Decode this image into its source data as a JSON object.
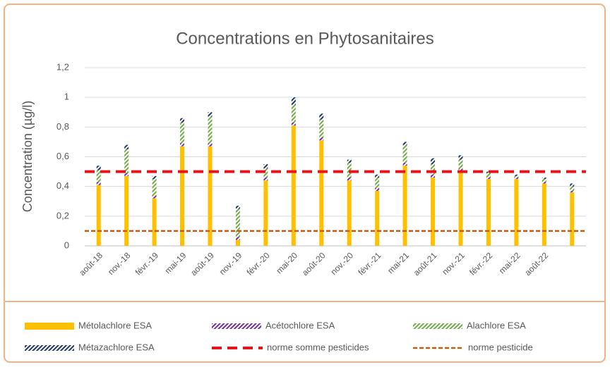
{
  "chart_data": {
    "type": "stacked_bar",
    "title": "Concentrations en Phytosanitaires",
    "y_axis_label": "Concentration (µg/l)",
    "categories": [
      "août-18",
      "nov.-18",
      "févr.-19",
      "mai-19",
      "août-19",
      "nov.-19",
      "févr.-20",
      "mai-20",
      "août-20",
      "nov.-20",
      "févr.-21",
      "mai-21",
      "août-21",
      "nov.-21",
      "févr.-22",
      "mai-22",
      "août-22",
      null
    ],
    "series": [
      {
        "name": "Métolachlore ESA",
        "color": "#ffc000",
        "hatch": false,
        "values": [
          0.41,
          0.47,
          0.32,
          0.67,
          0.67,
          0.04,
          0.44,
          0.81,
          0.71,
          0.44,
          0.37,
          0.54,
          0.46,
          0.5,
          0.45,
          0.45,
          0.42,
          0.36
        ]
      },
      {
        "name": "Acétochlore ESA",
        "color": "#7030a0",
        "hatch": true,
        "values": [
          0.02,
          0.02,
          0.02,
          0.02,
          0.02,
          0.02,
          0.02,
          0.02,
          0.02,
          0.02,
          0.02,
          0.02,
          0.02,
          0.02,
          0.01,
          0.01,
          0.01,
          0.01
        ]
      },
      {
        "name": "Alachlore ESA",
        "color": "#70ad47",
        "hatch": true,
        "values": [
          0.08,
          0.16,
          0.11,
          0.14,
          0.18,
          0.19,
          0.06,
          0.12,
          0.12,
          0.1,
          0.07,
          0.12,
          0.07,
          0.06,
          0.03,
          0.01,
          0.02,
          0.03
        ]
      },
      {
        "name": "Métazachlore ESA",
        "color": "#203864",
        "hatch": true,
        "values": [
          0.03,
          0.03,
          0.02,
          0.03,
          0.03,
          0.02,
          0.03,
          0.05,
          0.04,
          0.02,
          0.02,
          0.02,
          0.04,
          0.03,
          0.01,
          0.01,
          0.01,
          0.02
        ]
      }
    ],
    "reference_lines": [
      {
        "name": "norme somme pesticides",
        "color": "#e8141b",
        "value": 0.5
      },
      {
        "name": "norme pesticide",
        "color": "#c55a11",
        "value": 0.1
      }
    ],
    "ylim": [
      0,
      1.2
    ],
    "yticks": [
      0,
      {
        "value": 0.2,
        "label": "0,2"
      },
      {
        "value": 0.4,
        "label": "0,4"
      },
      {
        "value": 0.6,
        "label": "0,6"
      },
      {
        "value": 0.8,
        "label": "0,8"
      },
      1,
      {
        "value": 1.2,
        "label": "1,2"
      }
    ],
    "grid": true
  }
}
